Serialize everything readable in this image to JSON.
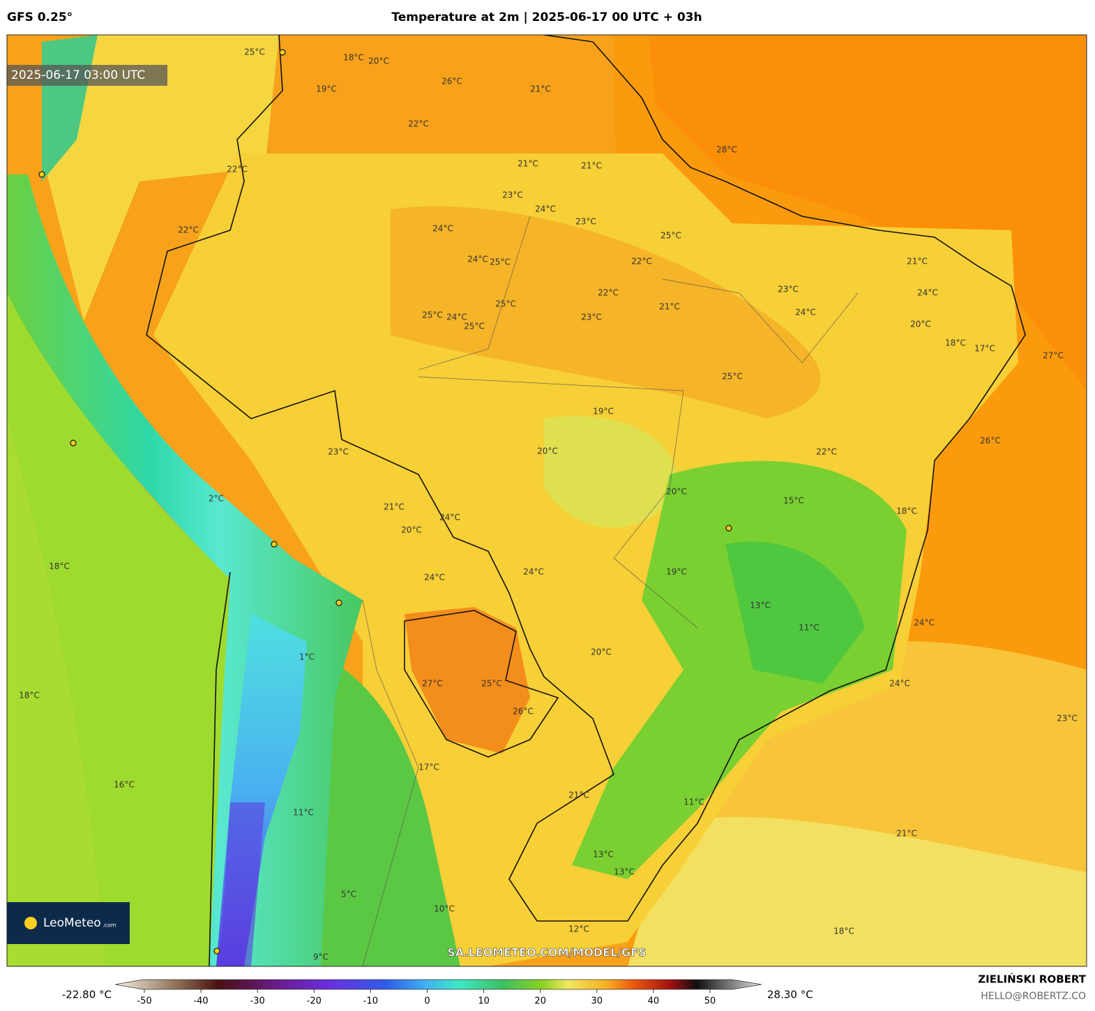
{
  "header": {
    "model": "GFS 0.25°",
    "title": "Temperature at 2m | 2025-06-17 00 UTC + 03h"
  },
  "map": {
    "timestamp": "2025-06-17 03:00 UTC",
    "watermark": "SA.LEOMETEO.COM/MODEL/GFS",
    "logo": "LeoMeteo",
    "logo_suffix": ".com",
    "contour_labels": [
      "25°C",
      "18°C",
      "20°C",
      "19°C",
      "26°C",
      "21°C",
      "22°C",
      "21°C",
      "21°C",
      "28°C",
      "22°C",
      "22°C",
      "23°C",
      "24°C",
      "23°C",
      "25°C",
      "22°C",
      "24°C",
      "24°C",
      "25°C",
      "22°C",
      "21°C",
      "23°C",
      "25°C",
      "25°C",
      "24°C",
      "25°C",
      "23°C",
      "24°C",
      "21°C",
      "24°C",
      "20°C",
      "18°C",
      "17°C",
      "27°C",
      "25°C",
      "19°C",
      "20°C",
      "26°C",
      "23°C",
      "22°C",
      "21°C",
      "20°C",
      "24°C",
      "20°C",
      "15°C",
      "18°C",
      "24°C",
      "24°C",
      "19°C",
      "18°C",
      "13°C",
      "11°C",
      "24°C",
      "20°C",
      "27°C",
      "25°C",
      "26°C",
      "18°C",
      "24°C",
      "23°C",
      "17°C",
      "21°C",
      "16°C",
      "11°C",
      "21°C",
      "13°C",
      "13°C",
      "18°C",
      "12°C",
      "5°C",
      "10°C",
      "9°C",
      "11°C",
      "2°C",
      "1°C"
    ]
  },
  "colorbar": {
    "min_label": "-22.80 °C",
    "max_label": "28.30 °C",
    "ticks": [
      -50,
      -40,
      -30,
      -20,
      -10,
      0,
      10,
      20,
      30,
      40,
      50
    ]
  },
  "footer": {
    "author": "ZIELIŃSKI ROBERT",
    "email": "HELLO@ROBERTZ.CO"
  }
}
